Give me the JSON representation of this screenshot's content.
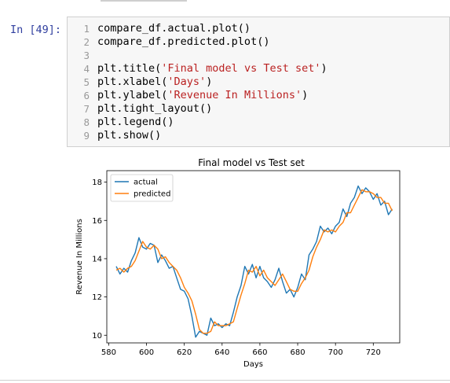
{
  "notebook": {
    "prompt": "In [49]:",
    "line_numbers": [
      "1",
      "2",
      "3",
      "4",
      "5",
      "6",
      "7",
      "8",
      "9"
    ],
    "code": {
      "l1": "compare_df.actual.plot()",
      "l2": "compare_df.predicted.plot()",
      "l3": "",
      "l4_pre": "plt.title(",
      "l4_str": "'Final model vs Test set'",
      "l4_post": ")",
      "l5_pre": "plt.xlabel(",
      "l5_str": "'Days'",
      "l5_post": ")",
      "l6_pre": "plt.ylabel(",
      "l6_str": "'Revenue In Millions'",
      "l6_post": ")",
      "l7": "plt.tight_layout()",
      "l8": "plt.legend()",
      "l9": "plt.show()"
    }
  },
  "colors": {
    "actual": "#1f77b4",
    "predicted": "#ff7f0e",
    "prompt": "#303f9f",
    "string": "#ba2121"
  },
  "chart_data": {
    "type": "line",
    "title": "Final model vs Test set",
    "xlabel": "Days",
    "ylabel": "Revenue In Millions",
    "xlim": [
      579,
      734
    ],
    "ylim": [
      9.6,
      18.6
    ],
    "xticks": [
      580,
      600,
      620,
      640,
      660,
      680,
      700,
      720
    ],
    "yticks": [
      10,
      12,
      14,
      16,
      18
    ],
    "legend_position": "top-left",
    "x": [
      584,
      586,
      588,
      590,
      592,
      594,
      596,
      598,
      600,
      602,
      604,
      606,
      608,
      610,
      612,
      614,
      616,
      618,
      620,
      622,
      624,
      626,
      628,
      630,
      632,
      634,
      636,
      638,
      640,
      642,
      644,
      646,
      648,
      650,
      652,
      654,
      656,
      658,
      660,
      662,
      664,
      666,
      668,
      670,
      672,
      674,
      676,
      678,
      680,
      682,
      684,
      686,
      688,
      690,
      692,
      694,
      696,
      698,
      700,
      702,
      704,
      706,
      708,
      710,
      712,
      714,
      716,
      718,
      720,
      722,
      724,
      726,
      728,
      730
    ],
    "series": [
      {
        "name": "actual",
        "values": [
          13.6,
          13.2,
          13.5,
          13.3,
          13.9,
          14.3,
          15.1,
          14.6,
          14.5,
          14.8,
          14.7,
          13.8,
          14.2,
          13.9,
          13.5,
          13.6,
          13.0,
          12.4,
          12.3,
          11.9,
          11.0,
          9.9,
          10.2,
          10.1,
          10.0,
          10.9,
          10.5,
          10.6,
          10.4,
          10.6,
          10.5,
          11.2,
          12.0,
          12.6,
          13.6,
          13.2,
          13.7,
          13.0,
          13.6,
          13.0,
          12.8,
          12.5,
          12.9,
          13.5,
          12.8,
          12.2,
          12.4,
          12.0,
          12.5,
          13.2,
          12.9,
          14.2,
          14.5,
          14.9,
          15.7,
          15.4,
          15.6,
          15.3,
          15.7,
          15.9,
          16.6,
          16.2,
          16.9,
          17.2,
          17.8,
          17.4,
          17.7,
          17.5,
          17.1,
          17.4,
          16.8,
          17.0,
          16.3,
          16.6
        ]
      },
      {
        "name": "predicted",
        "values": [
          13.4,
          13.5,
          13.3,
          13.5,
          13.6,
          13.9,
          14.4,
          14.9,
          14.6,
          14.5,
          14.7,
          14.5,
          14.0,
          14.1,
          13.8,
          13.6,
          13.4,
          13.0,
          12.5,
          12.2,
          11.8,
          11.1,
          10.3,
          10.1,
          10.1,
          10.2,
          10.7,
          10.5,
          10.5,
          10.5,
          10.6,
          10.7,
          11.4,
          12.1,
          12.7,
          13.4,
          13.3,
          13.6,
          13.1,
          13.4,
          13.0,
          12.8,
          12.6,
          12.9,
          13.2,
          12.8,
          12.4,
          12.3,
          12.3,
          12.7,
          13.0,
          13.4,
          14.1,
          14.6,
          15.0,
          15.5,
          15.4,
          15.5,
          15.4,
          15.7,
          15.9,
          16.4,
          16.4,
          16.8,
          17.2,
          17.6,
          17.5,
          17.5,
          17.4,
          17.2,
          17.2,
          16.9,
          16.9,
          16.5
        ]
      }
    ]
  }
}
